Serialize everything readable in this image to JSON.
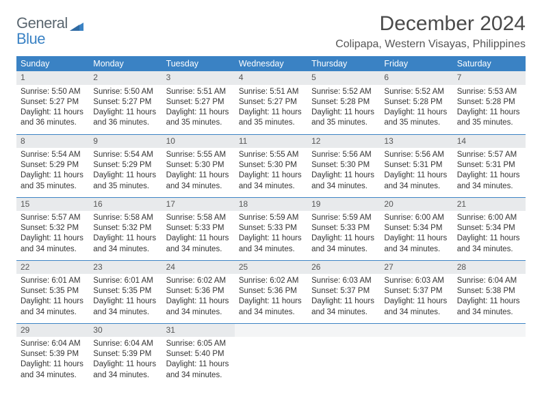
{
  "logo": {
    "line1": "General",
    "line2": "Blue"
  },
  "title": "December 2024",
  "location": "Colipapa, Western Visayas, Philippines",
  "colors": {
    "header_bg": "#3a82c4",
    "header_text": "#ffffff",
    "daynum_bg": "#e8eaec",
    "daynum_text": "#555555",
    "rule": "#3a82c4",
    "text": "#333333",
    "logo_gray": "#5b6770",
    "logo_blue": "#3a82c4"
  },
  "weekday_headers": [
    "Sunday",
    "Monday",
    "Tuesday",
    "Wednesday",
    "Thursday",
    "Friday",
    "Saturday"
  ],
  "weeks": [
    [
      {
        "d": "1",
        "sr": "5:50 AM",
        "ss": "5:27 PM",
        "dl": "11 hours and 36 minutes."
      },
      {
        "d": "2",
        "sr": "5:50 AM",
        "ss": "5:27 PM",
        "dl": "11 hours and 36 minutes."
      },
      {
        "d": "3",
        "sr": "5:51 AM",
        "ss": "5:27 PM",
        "dl": "11 hours and 35 minutes."
      },
      {
        "d": "4",
        "sr": "5:51 AM",
        "ss": "5:27 PM",
        "dl": "11 hours and 35 minutes."
      },
      {
        "d": "5",
        "sr": "5:52 AM",
        "ss": "5:28 PM",
        "dl": "11 hours and 35 minutes."
      },
      {
        "d": "6",
        "sr": "5:52 AM",
        "ss": "5:28 PM",
        "dl": "11 hours and 35 minutes."
      },
      {
        "d": "7",
        "sr": "5:53 AM",
        "ss": "5:28 PM",
        "dl": "11 hours and 35 minutes."
      }
    ],
    [
      {
        "d": "8",
        "sr": "5:54 AM",
        "ss": "5:29 PM",
        "dl": "11 hours and 35 minutes."
      },
      {
        "d": "9",
        "sr": "5:54 AM",
        "ss": "5:29 PM",
        "dl": "11 hours and 35 minutes."
      },
      {
        "d": "10",
        "sr": "5:55 AM",
        "ss": "5:30 PM",
        "dl": "11 hours and 34 minutes."
      },
      {
        "d": "11",
        "sr": "5:55 AM",
        "ss": "5:30 PM",
        "dl": "11 hours and 34 minutes."
      },
      {
        "d": "12",
        "sr": "5:56 AM",
        "ss": "5:30 PM",
        "dl": "11 hours and 34 minutes."
      },
      {
        "d": "13",
        "sr": "5:56 AM",
        "ss": "5:31 PM",
        "dl": "11 hours and 34 minutes."
      },
      {
        "d": "14",
        "sr": "5:57 AM",
        "ss": "5:31 PM",
        "dl": "11 hours and 34 minutes."
      }
    ],
    [
      {
        "d": "15",
        "sr": "5:57 AM",
        "ss": "5:32 PM",
        "dl": "11 hours and 34 minutes."
      },
      {
        "d": "16",
        "sr": "5:58 AM",
        "ss": "5:32 PM",
        "dl": "11 hours and 34 minutes."
      },
      {
        "d": "17",
        "sr": "5:58 AM",
        "ss": "5:33 PM",
        "dl": "11 hours and 34 minutes."
      },
      {
        "d": "18",
        "sr": "5:59 AM",
        "ss": "5:33 PM",
        "dl": "11 hours and 34 minutes."
      },
      {
        "d": "19",
        "sr": "5:59 AM",
        "ss": "5:33 PM",
        "dl": "11 hours and 34 minutes."
      },
      {
        "d": "20",
        "sr": "6:00 AM",
        "ss": "5:34 PM",
        "dl": "11 hours and 34 minutes."
      },
      {
        "d": "21",
        "sr": "6:00 AM",
        "ss": "5:34 PM",
        "dl": "11 hours and 34 minutes."
      }
    ],
    [
      {
        "d": "22",
        "sr": "6:01 AM",
        "ss": "5:35 PM",
        "dl": "11 hours and 34 minutes."
      },
      {
        "d": "23",
        "sr": "6:01 AM",
        "ss": "5:35 PM",
        "dl": "11 hours and 34 minutes."
      },
      {
        "d": "24",
        "sr": "6:02 AM",
        "ss": "5:36 PM",
        "dl": "11 hours and 34 minutes."
      },
      {
        "d": "25",
        "sr": "6:02 AM",
        "ss": "5:36 PM",
        "dl": "11 hours and 34 minutes."
      },
      {
        "d": "26",
        "sr": "6:03 AM",
        "ss": "5:37 PM",
        "dl": "11 hours and 34 minutes."
      },
      {
        "d": "27",
        "sr": "6:03 AM",
        "ss": "5:37 PM",
        "dl": "11 hours and 34 minutes."
      },
      {
        "d": "28",
        "sr": "6:04 AM",
        "ss": "5:38 PM",
        "dl": "11 hours and 34 minutes."
      }
    ],
    [
      {
        "d": "29",
        "sr": "6:04 AM",
        "ss": "5:39 PM",
        "dl": "11 hours and 34 minutes."
      },
      {
        "d": "30",
        "sr": "6:04 AM",
        "ss": "5:39 PM",
        "dl": "11 hours and 34 minutes."
      },
      {
        "d": "31",
        "sr": "6:05 AM",
        "ss": "5:40 PM",
        "dl": "11 hours and 34 minutes."
      },
      null,
      null,
      null,
      null
    ]
  ],
  "labels": {
    "sunrise": "Sunrise:",
    "sunset": "Sunset:",
    "daylight": "Daylight:"
  }
}
